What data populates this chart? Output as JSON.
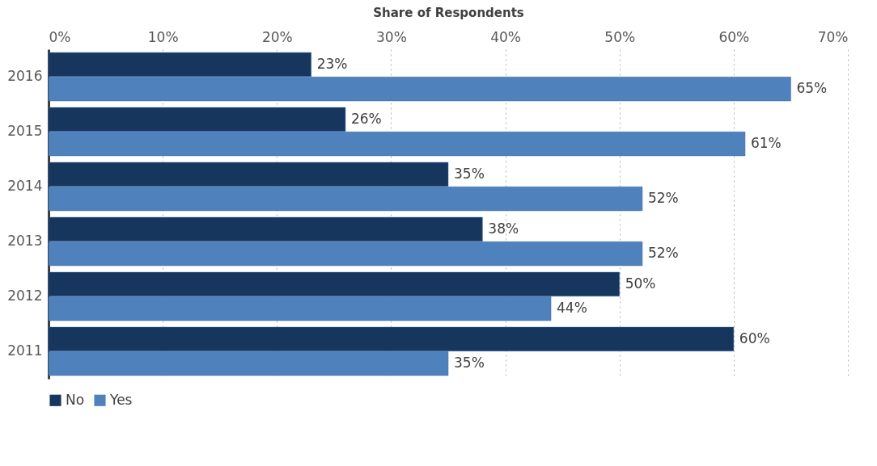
{
  "chart_data": {
    "type": "bar",
    "orientation": "horizontal",
    "xlabel": "Share of Respondents",
    "categories": [
      "2016",
      "2015",
      "2014",
      "2013",
      "2012",
      "2011"
    ],
    "series": [
      {
        "name": "No",
        "color": "#17365d",
        "values": [
          23,
          26,
          35,
          38,
          50,
          60
        ],
        "value_labels": [
          "23%",
          "26%",
          "35%",
          "38%",
          "50%",
          "60%"
        ]
      },
      {
        "name": "Yes",
        "color": "#4f81bd",
        "values": [
          65,
          61,
          52,
          52,
          44,
          35
        ],
        "value_labels": [
          "65%",
          "61%",
          "52%",
          "52%",
          "44%",
          "35%"
        ]
      }
    ],
    "xlim": [
      0,
      70
    ],
    "xticks": [
      {
        "value": 0,
        "label": "0%"
      },
      {
        "value": 10,
        "label": "10%"
      },
      {
        "value": 20,
        "label": "20%"
      },
      {
        "value": 30,
        "label": "30%"
      },
      {
        "value": 40,
        "label": "40%"
      },
      {
        "value": 50,
        "label": "50%"
      },
      {
        "value": 60,
        "label": "60%"
      },
      {
        "value": 70,
        "label": "70%"
      }
    ],
    "grid": "x",
    "legend": "bottom"
  }
}
